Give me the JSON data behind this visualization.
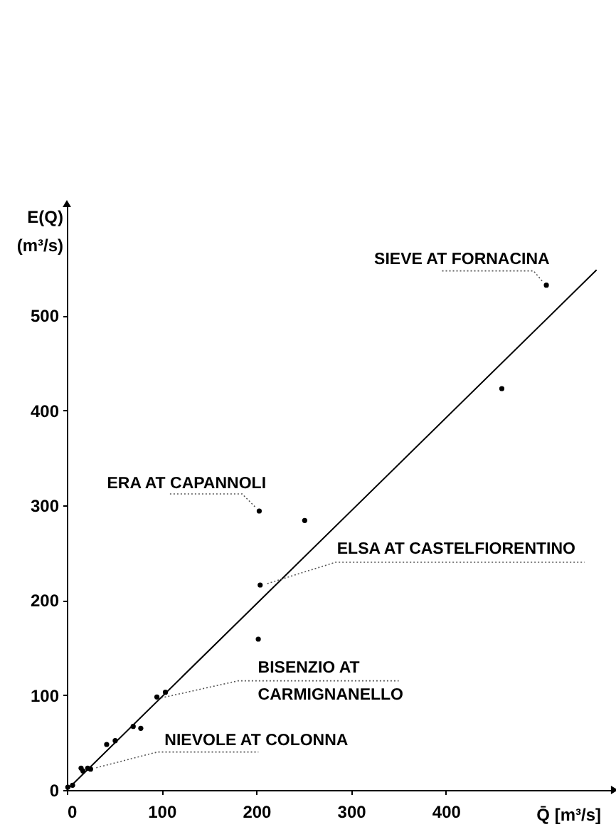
{
  "chart_data": {
    "type": "scatter",
    "xlabel": "Q̄ [m³/s]",
    "ylabel": "E(Q)\n(m³/s)",
    "xlim": [
      0,
      578
    ],
    "ylim": [
      0,
      618
    ],
    "xticks": [
      0,
      100,
      200,
      300,
      400
    ],
    "yticks": [
      0,
      100,
      200,
      300,
      400,
      500
    ],
    "grid": false,
    "series": [
      {
        "color": "#000000",
        "marker": "circle",
        "x": [
          1,
          6,
          15,
          17,
          22,
          25,
          42,
          51,
          70,
          78,
          95,
          104,
          202,
          204,
          203,
          251,
          459,
          506
        ],
        "values": [
          3,
          5,
          23,
          20,
          23,
          22,
          48,
          52,
          67,
          65,
          98,
          103,
          159,
          216,
          294,
          284,
          423,
          532
        ]
      },
      {
        "type": "line",
        "color": "#000000",
        "line_style": "solid",
        "x": [
          0,
          559
        ],
        "values": [
          0,
          548
        ]
      }
    ],
    "annotations": [
      {
        "text": "SIEVE AT FORNACINA",
        "x": 506,
        "y": 532
      },
      {
        "text": "ERA AT CAPANNOLI",
        "x": 203,
        "y": 294
      },
      {
        "text": "ELSA AT CASTELFIORENTINO",
        "x": 204,
        "y": 216
      },
      {
        "text": "BISENZIO AT\nCARMIGNANELLO",
        "x": 104,
        "y": 103
      },
      {
        "text": "NIEVOLE AT COLONNA",
        "x": 25,
        "y": 22
      }
    ]
  }
}
